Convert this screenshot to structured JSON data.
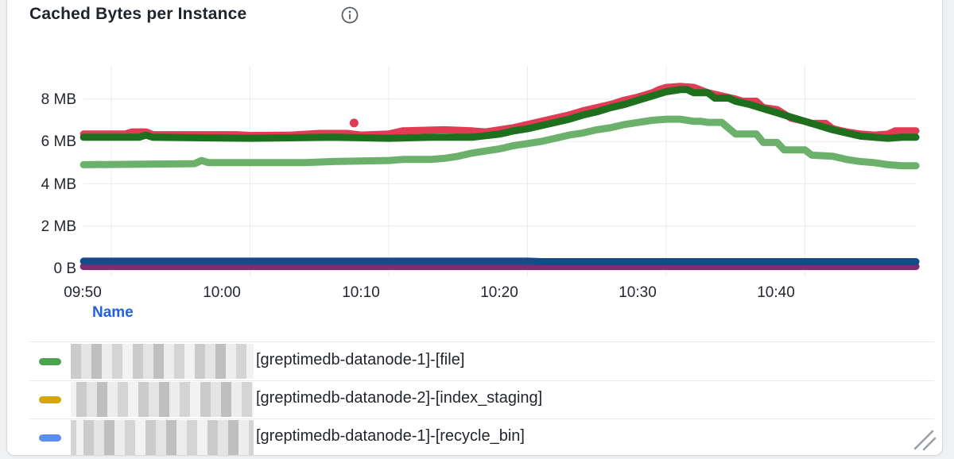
{
  "header": {
    "title": "Cached Bytes per Instance",
    "info_icon": "info-circle"
  },
  "chart_data": {
    "type": "line",
    "title": "Cached Bytes per Instance",
    "xlabel": "",
    "ylabel": "",
    "grid": true,
    "legend_position": "bottom-table",
    "x_ticks": [
      "09:50",
      "10:00",
      "10:10",
      "10:20",
      "10:30",
      "10:40"
    ],
    "y_ticks": [
      "0 B",
      "2 MB",
      "4 MB",
      "6 MB",
      "8 MB"
    ],
    "x_range_minutes": [
      588,
      648
    ],
    "ylim_mb": [
      0,
      9.57
    ],
    "series": [
      {
        "name": "red",
        "color": "#e23b55",
        "points": [
          [
            588,
            6.35
          ],
          [
            591,
            6.35
          ],
          [
            591.5,
            6.45
          ],
          [
            592.5,
            6.45
          ],
          [
            593,
            6.32
          ],
          [
            599,
            6.32
          ],
          [
            600,
            6.28
          ],
          [
            603,
            6.3
          ],
          [
            605,
            6.38
          ],
          [
            607,
            6.38
          ],
          [
            608,
            6.3
          ],
          [
            610,
            6.35
          ],
          [
            611,
            6.5
          ],
          [
            614,
            6.55
          ],
          [
            616,
            6.5
          ],
          [
            617,
            6.45
          ],
          [
            618,
            6.55
          ],
          [
            619,
            6.65
          ],
          [
            620,
            6.8
          ],
          [
            621,
            6.95
          ],
          [
            622,
            7.1
          ],
          [
            623,
            7.25
          ],
          [
            624,
            7.45
          ],
          [
            625,
            7.6
          ],
          [
            626,
            7.75
          ],
          [
            627,
            7.95
          ],
          [
            628,
            8.1
          ],
          [
            629,
            8.3
          ],
          [
            629.5,
            8.45
          ],
          [
            630,
            8.55
          ],
          [
            631,
            8.6
          ],
          [
            632,
            8.55
          ],
          [
            633,
            8.3
          ],
          [
            634,
            8.15
          ],
          [
            635,
            8.0
          ],
          [
            635.5,
            7.9
          ],
          [
            636.5,
            7.9
          ],
          [
            637,
            7.6
          ],
          [
            638,
            7.5
          ],
          [
            638.5,
            7.3
          ],
          [
            639,
            7.1
          ],
          [
            640,
            6.95
          ],
          [
            640.5,
            6.85
          ],
          [
            641.5,
            6.85
          ],
          [
            642,
            6.6
          ],
          [
            643,
            6.45
          ],
          [
            644,
            6.35
          ],
          [
            645,
            6.3
          ],
          [
            646,
            6.35
          ],
          [
            646.5,
            6.5
          ],
          [
            648,
            6.5
          ]
        ]
      },
      {
        "name": "dark-green",
        "color": "#1e701e",
        "points": [
          [
            588,
            6.2
          ],
          [
            592,
            6.2
          ],
          [
            592.5,
            6.3
          ],
          [
            593,
            6.2
          ],
          [
            600,
            6.15
          ],
          [
            606,
            6.2
          ],
          [
            610,
            6.15
          ],
          [
            613,
            6.2
          ],
          [
            616,
            6.2
          ],
          [
            618,
            6.35
          ],
          [
            619,
            6.5
          ],
          [
            620,
            6.6
          ],
          [
            621,
            6.75
          ],
          [
            622,
            6.9
          ],
          [
            623,
            7.05
          ],
          [
            624,
            7.25
          ],
          [
            625,
            7.4
          ],
          [
            626,
            7.6
          ],
          [
            627,
            7.75
          ],
          [
            628,
            7.95
          ],
          [
            629,
            8.15
          ],
          [
            630,
            8.35
          ],
          [
            631,
            8.45
          ],
          [
            631.5,
            8.45
          ],
          [
            632,
            8.3
          ],
          [
            633,
            8.3
          ],
          [
            633.5,
            8.05
          ],
          [
            634.5,
            8.05
          ],
          [
            635,
            7.9
          ],
          [
            636,
            7.75
          ],
          [
            637,
            7.55
          ],
          [
            638,
            7.35
          ],
          [
            639,
            7.15
          ],
          [
            640,
            6.95
          ],
          [
            641,
            6.75
          ],
          [
            642,
            6.55
          ],
          [
            643,
            6.4
          ],
          [
            644,
            6.25
          ],
          [
            645,
            6.2
          ],
          [
            646,
            6.15
          ],
          [
            647,
            6.2
          ],
          [
            648,
            6.2
          ]
        ]
      },
      {
        "name": "light-green",
        "color": "#6bb06b",
        "points": [
          [
            588,
            4.9
          ],
          [
            596,
            4.95
          ],
          [
            596.5,
            5.1
          ],
          [
            597,
            5.0
          ],
          [
            604,
            5.0
          ],
          [
            606,
            5.05
          ],
          [
            610,
            5.1
          ],
          [
            611,
            5.15
          ],
          [
            613,
            5.15
          ],
          [
            614,
            5.2
          ],
          [
            615,
            5.3
          ],
          [
            616,
            5.45
          ],
          [
            617,
            5.55
          ],
          [
            618,
            5.65
          ],
          [
            619,
            5.8
          ],
          [
            620,
            5.9
          ],
          [
            621,
            6.0
          ],
          [
            622,
            6.15
          ],
          [
            623,
            6.3
          ],
          [
            624,
            6.4
          ],
          [
            625,
            6.55
          ],
          [
            626,
            6.65
          ],
          [
            627,
            6.8
          ],
          [
            628,
            6.9
          ],
          [
            629,
            7.0
          ],
          [
            630,
            7.05
          ],
          [
            631,
            7.05
          ],
          [
            632,
            6.95
          ],
          [
            632.5,
            6.95
          ],
          [
            633,
            6.9
          ],
          [
            634,
            6.9
          ],
          [
            635,
            6.35
          ],
          [
            636.5,
            6.35
          ],
          [
            637,
            5.95
          ],
          [
            638,
            5.95
          ],
          [
            638.5,
            5.6
          ],
          [
            640,
            5.6
          ],
          [
            640.5,
            5.35
          ],
          [
            642,
            5.3
          ],
          [
            643,
            5.15
          ],
          [
            644,
            5.05
          ],
          [
            645,
            5.0
          ],
          [
            646,
            4.9
          ],
          [
            647,
            4.85
          ],
          [
            648,
            4.85
          ]
        ]
      },
      {
        "name": "navy",
        "color": "#174a89",
        "points": [
          [
            588,
            0.34
          ],
          [
            620,
            0.34
          ],
          [
            621,
            0.32
          ],
          [
            648,
            0.32
          ]
        ]
      },
      {
        "name": "purple",
        "color": "#7c2c6f",
        "points": [
          [
            588,
            0.09
          ],
          [
            648,
            0.09
          ]
        ]
      }
    ],
    "outlier_point": {
      "series": "red",
      "color": "#e23b55",
      "minute": 607.5,
      "mb": 6.87
    }
  },
  "legend": {
    "header": "Name",
    "rows": [
      {
        "color": "#4ba34b",
        "redacted_prefix": true,
        "label": "[greptimedb-datanode-1]-[file]"
      },
      {
        "color": "#d8a602",
        "redacted_prefix": true,
        "label": "[greptimedb-datanode-2]-[index_staging]"
      },
      {
        "color": "#5a8ff2",
        "redacted_prefix": true,
        "label": "[greptimedb-datanode-1]-[recycle_bin]"
      }
    ]
  },
  "colors": {
    "grid": "#ececec",
    "axis_text": "#23272e",
    "legend_header": "#2160e0",
    "card_border": "#d6dade",
    "resize_handle": "#9aa0a6"
  }
}
